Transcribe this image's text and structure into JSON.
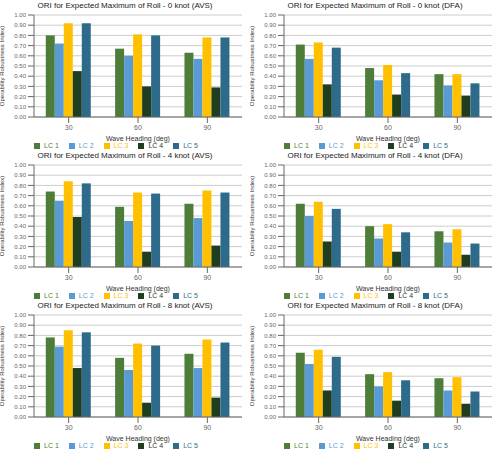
{
  "chart_data": [
    {
      "type": "bar",
      "title": "ORI for Expected Maximum of Roll - 0 knot (AVS)",
      "xlabel": "Wave Heading (deg)",
      "ylabel": "Operability Robustness Index)",
      "categories": [
        "30",
        "60",
        "90"
      ],
      "series": [
        {
          "name": "LC 1",
          "color": "#4e7d3a",
          "values": [
            0.8,
            0.67,
            0.63
          ]
        },
        {
          "name": "LC 2",
          "color": "#5b9bd5",
          "values": [
            0.72,
            0.6,
            0.57
          ]
        },
        {
          "name": "LC 3",
          "color": "#ffc000",
          "values": [
            0.92,
            0.81,
            0.78
          ]
        },
        {
          "name": "LC 4",
          "color": "#1f3d1f",
          "values": [
            0.45,
            0.3,
            0.29
          ]
        },
        {
          "name": "LC 5",
          "color": "#2e6b8a",
          "values": [
            0.92,
            0.8,
            0.78
          ]
        }
      ],
      "ylim": [
        0.0,
        1.0
      ],
      "yticks": [
        {
          "value": 0.0,
          "label": "0.00"
        },
        {
          "value": 0.1,
          "label": "0.10"
        },
        {
          "value": 0.2,
          "label": "0.20"
        },
        {
          "value": 0.3,
          "label": "0.30"
        },
        {
          "value": 0.4,
          "label": "0.40"
        },
        {
          "value": 0.5,
          "label": "0.50"
        },
        {
          "value": 0.6,
          "label": "0.60"
        },
        {
          "value": 0.7,
          "label": "0.70"
        },
        {
          "value": 0.8,
          "label": "0.80"
        },
        {
          "value": 0.9,
          "label": "0.90"
        },
        {
          "value": 1.0,
          "label": "1.00"
        }
      ],
      "grid": true,
      "legend": "bottom"
    },
    {
      "type": "bar",
      "title": "ORI for Expected Maximum of Roll - 0 knot (DFA)",
      "xlabel": "Wave Heading (deg)",
      "ylabel": "Operability Robustness Index)",
      "categories": [
        "30",
        "60",
        "90"
      ],
      "series": [
        {
          "name": "LC 1",
          "color": "#4e7d3a",
          "values": [
            0.71,
            0.48,
            0.42
          ]
        },
        {
          "name": "LC 2",
          "color": "#5b9bd5",
          "values": [
            0.57,
            0.36,
            0.31
          ]
        },
        {
          "name": "LC 3",
          "color": "#ffc000",
          "values": [
            0.73,
            0.51,
            0.42
          ]
        },
        {
          "name": "LC 4",
          "color": "#1f3d1f",
          "values": [
            0.32,
            0.22,
            0.21
          ]
        },
        {
          "name": "LC 5",
          "color": "#2e6b8a",
          "values": [
            0.68,
            0.43,
            0.33
          ]
        }
      ],
      "ylim": [
        0.0,
        1.0
      ],
      "yticks": [
        {
          "value": 0.0,
          "label": "0.00"
        },
        {
          "value": 0.1,
          "label": "0.10"
        },
        {
          "value": 0.2,
          "label": "0.20"
        },
        {
          "value": 0.3,
          "label": "0.30"
        },
        {
          "value": 0.4,
          "label": "0.40"
        },
        {
          "value": 0.5,
          "label": "0.50"
        },
        {
          "value": 0.6,
          "label": "0.60"
        },
        {
          "value": 0.7,
          "label": "0.70"
        },
        {
          "value": 0.8,
          "label": "0.80"
        },
        {
          "value": 0.9,
          "label": "0.90"
        },
        {
          "value": 1.0,
          "label": "1.00"
        }
      ],
      "grid": true,
      "legend": "bottom"
    },
    {
      "type": "bar",
      "title": "ORI for Expected Maximum of Roll - 4 knot (AVS)",
      "xlabel": "Wave Heading (deg)",
      "ylabel": "Operability Robustness Index)",
      "categories": [
        "30",
        "60",
        "90"
      ],
      "series": [
        {
          "name": "LC 1",
          "color": "#4e7d3a",
          "values": [
            0.74,
            0.59,
            0.62
          ]
        },
        {
          "name": "LC 2",
          "color": "#5b9bd5",
          "values": [
            0.65,
            0.45,
            0.48
          ]
        },
        {
          "name": "LC 3",
          "color": "#ffc000",
          "values": [
            0.84,
            0.73,
            0.75
          ]
        },
        {
          "name": "LC 4",
          "color": "#1f3d1f",
          "values": [
            0.49,
            0.15,
            0.21
          ]
        },
        {
          "name": "LC 5",
          "color": "#2e6b8a",
          "values": [
            0.82,
            0.72,
            0.73
          ]
        }
      ],
      "ylim": [
        0.0,
        1.0
      ],
      "yticks": [
        {
          "value": 0.0,
          "label": "0.00"
        },
        {
          "value": 0.1,
          "label": "0.10"
        },
        {
          "value": 0.2,
          "label": "0.20"
        },
        {
          "value": 0.3,
          "label": "0.30"
        },
        {
          "value": 0.4,
          "label": "0.40"
        },
        {
          "value": 0.5,
          "label": "0.50"
        },
        {
          "value": 0.6,
          "label": "0.60"
        },
        {
          "value": 0.7,
          "label": "0.70"
        },
        {
          "value": 0.8,
          "label": "0.80"
        },
        {
          "value": 0.9,
          "label": "0.90"
        },
        {
          "value": 1.0,
          "label": "1.00"
        }
      ],
      "grid": true,
      "legend": "bottom"
    },
    {
      "type": "bar",
      "title": "ORI for Expected Maximum of Roll - 4 knot (DFA)",
      "xlabel": "Wave Heading (deg)",
      "ylabel": "Operability Robustness Index)",
      "categories": [
        "30",
        "60",
        "90"
      ],
      "series": [
        {
          "name": "LC 1",
          "color": "#4e7d3a",
          "values": [
            0.62,
            0.4,
            0.35
          ]
        },
        {
          "name": "LC 2",
          "color": "#5b9bd5",
          "values": [
            0.5,
            0.28,
            0.24
          ]
        },
        {
          "name": "LC 3",
          "color": "#ffc000",
          "values": [
            0.64,
            0.42,
            0.37
          ]
        },
        {
          "name": "LC 4",
          "color": "#1f3d1f",
          "values": [
            0.25,
            0.15,
            0.12
          ]
        },
        {
          "name": "LC 5",
          "color": "#2e6b8a",
          "values": [
            0.57,
            0.34,
            0.23
          ]
        }
      ],
      "ylim": [
        0.0,
        1.0
      ],
      "yticks": [
        {
          "value": 0.0,
          "label": "0.00"
        },
        {
          "value": 0.1,
          "label": "0.10"
        },
        {
          "value": 0.2,
          "label": "0.20"
        },
        {
          "value": 0.3,
          "label": "0.30"
        },
        {
          "value": 0.4,
          "label": "0.40"
        },
        {
          "value": 0.5,
          "label": "0.50"
        },
        {
          "value": 0.6,
          "label": "0.60"
        },
        {
          "value": 0.7,
          "label": "0.70"
        },
        {
          "value": 0.8,
          "label": "0.80"
        },
        {
          "value": 0.9,
          "label": "0.90"
        },
        {
          "value": 1.0,
          "label": "1.00"
        }
      ],
      "grid": true,
      "legend": "bottom"
    },
    {
      "type": "bar",
      "title": "ORI for Expected Maximum of Roll - 8 knot (AVS)",
      "xlabel": "Wave Heading (deg)",
      "ylabel": "Operability Robustness Index)",
      "categories": [
        "30",
        "60",
        "90"
      ],
      "series": [
        {
          "name": "LC 1",
          "color": "#4e7d3a",
          "values": [
            0.78,
            0.58,
            0.62
          ]
        },
        {
          "name": "LC 2",
          "color": "#5b9bd5",
          "values": [
            0.69,
            0.46,
            0.48
          ]
        },
        {
          "name": "LC 3",
          "color": "#ffc000",
          "values": [
            0.85,
            0.72,
            0.76
          ]
        },
        {
          "name": "LC 4",
          "color": "#1f3d1f",
          "values": [
            0.48,
            0.14,
            0.19
          ]
        },
        {
          "name": "LC 5",
          "color": "#2e6b8a",
          "values": [
            0.83,
            0.7,
            0.73
          ]
        }
      ],
      "ylim": [
        0.0,
        1.0
      ],
      "yticks": [
        {
          "value": 0.0,
          "label": "0.00"
        },
        {
          "value": 0.1,
          "label": "0.10"
        },
        {
          "value": 0.2,
          "label": "0.20"
        },
        {
          "value": 0.3,
          "label": "0.30"
        },
        {
          "value": 0.4,
          "label": "0.40"
        },
        {
          "value": 0.5,
          "label": "0.50"
        },
        {
          "value": 0.6,
          "label": "0.60"
        },
        {
          "value": 0.7,
          "label": "0.70"
        },
        {
          "value": 0.8,
          "label": "0.80"
        },
        {
          "value": 0.9,
          "label": "0.90"
        },
        {
          "value": 1.0,
          "label": "1.00"
        }
      ],
      "grid": true,
      "legend": "bottom"
    },
    {
      "type": "bar",
      "title": "ORI for Expected Maximum of Roll - 8 knot (DFA)",
      "xlabel": "Wave Heading (deg)",
      "ylabel": "Operability Robustness Index)",
      "categories": [
        "30",
        "60",
        "90"
      ],
      "series": [
        {
          "name": "LC 1",
          "color": "#4e7d3a",
          "values": [
            0.63,
            0.42,
            0.38
          ]
        },
        {
          "name": "LC 2",
          "color": "#5b9bd5",
          "values": [
            0.52,
            0.3,
            0.26
          ]
        },
        {
          "name": "LC 3",
          "color": "#ffc000",
          "values": [
            0.66,
            0.44,
            0.39
          ]
        },
        {
          "name": "LC 4",
          "color": "#1f3d1f",
          "values": [
            0.26,
            0.16,
            0.13
          ]
        },
        {
          "name": "LC 5",
          "color": "#2e6b8a",
          "values": [
            0.59,
            0.36,
            0.25
          ]
        }
      ],
      "ylim": [
        0.0,
        1.0
      ],
      "yticks": [
        {
          "value": 0.0,
          "label": "0.00"
        },
        {
          "value": 0.1,
          "label": "0.10"
        },
        {
          "value": 0.2,
          "label": "0.20"
        },
        {
          "value": 0.3,
          "label": "0.30"
        },
        {
          "value": 0.4,
          "label": "0.40"
        },
        {
          "value": 0.5,
          "label": "0.50"
        },
        {
          "value": 0.6,
          "label": "0.60"
        },
        {
          "value": 0.7,
          "label": "0.70"
        },
        {
          "value": 0.8,
          "label": "0.80"
        },
        {
          "value": 0.9,
          "label": "0.90"
        },
        {
          "value": 1.0,
          "label": "1.00"
        }
      ],
      "grid": true,
      "legend": "bottom"
    }
  ]
}
